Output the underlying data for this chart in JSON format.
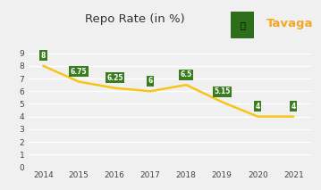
{
  "years": [
    2014,
    2015,
    2016,
    2017,
    2018,
    2019,
    2020,
    2021
  ],
  "values": [
    8,
    6.75,
    6.25,
    6,
    6.5,
    5.15,
    4,
    4
  ],
  "line_color": "#F5C518",
  "marker_box_color": "#3a7d1e",
  "marker_text_color": "#ffffff",
  "title": "Repo Rate (in %)",
  "title_fontsize": 9.5,
  "brand_name": "Tavaga",
  "brand_color": "#F5A623",
  "ylim": [
    0,
    9
  ],
  "yticks": [
    0,
    1,
    2,
    3,
    4,
    5,
    6,
    7,
    8,
    9
  ],
  "bg_color": "#f0f0f0",
  "grid_color": "#ffffff",
  "axis_label_fontsize": 6.5,
  "value_fontsize": 5.5,
  "icon_color": "#2d6e1a",
  "line_width": 1.8
}
